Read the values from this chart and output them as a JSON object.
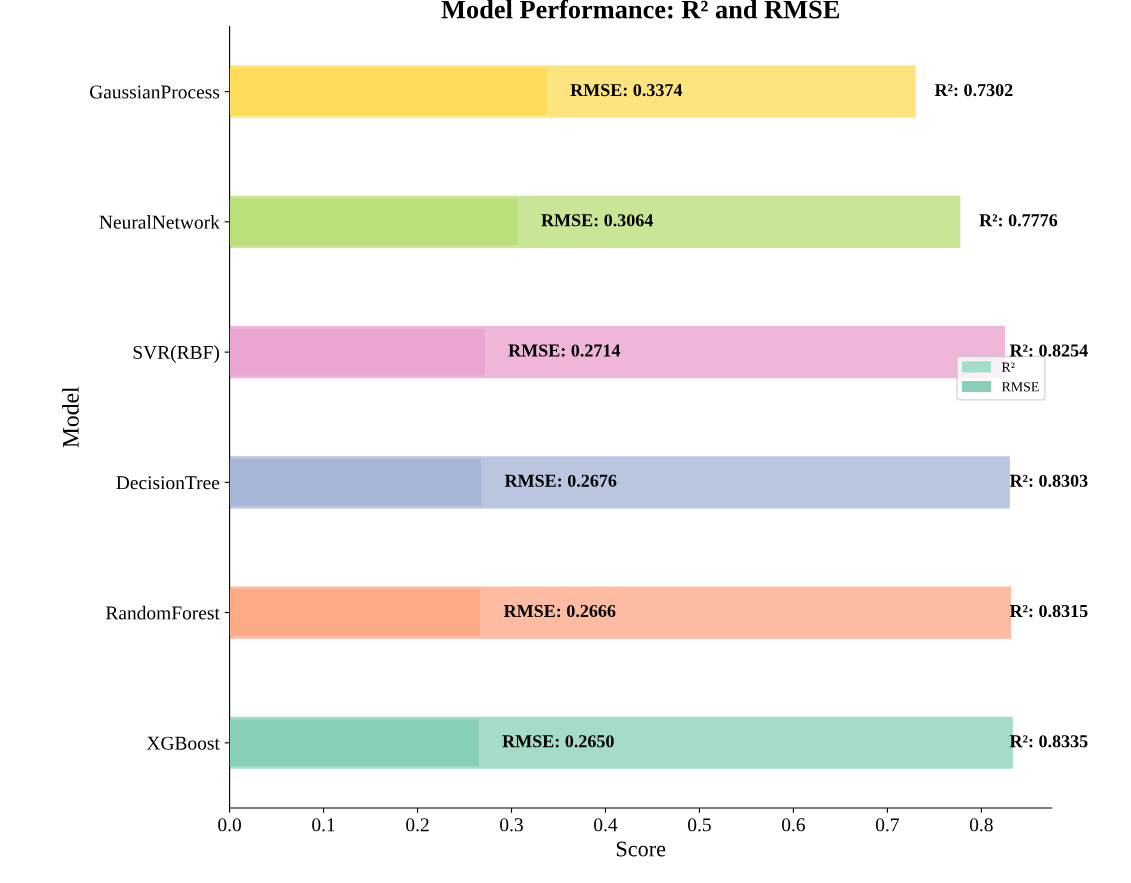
{
  "chart_data": {
    "type": "bar",
    "orientation": "horizontal",
    "title": "Model Performance: R² and RMSE",
    "xlabel": "Score",
    "ylabel": "Model",
    "categories": [
      "GaussianProcess",
      "NeuralNetwork",
      "SVR(RBF)",
      "DecisionTree",
      "RandomForest",
      "XGBoost"
    ],
    "series": [
      {
        "name": "R²",
        "colors": [
          "#fee47f",
          "#c8e696",
          "#efb6da",
          "#bac6e0",
          "#fdbba1",
          "#a5dcc9"
        ],
        "values": [
          0.7302,
          0.7776,
          0.8254,
          0.8303,
          0.8315,
          0.8335
        ],
        "value_labels": [
          "R²: 0.7302",
          "R²: 0.7776",
          "R²: 0.8254",
          "R²: 0.8303",
          "R²: 0.8315",
          "R²: 0.8335"
        ]
      },
      {
        "name": "RMSE",
        "colors": [
          "#ffdc5a",
          "#bade7a",
          "#eaa4d0",
          "#a6b5d6",
          "#fca986",
          "#88cfb8"
        ],
        "values": [
          0.3374,
          0.3064,
          0.2714,
          0.2676,
          0.2666,
          0.265
        ],
        "value_labels": [
          "RMSE: 0.3374",
          "RMSE: 0.3064",
          "RMSE: 0.2714",
          "RMSE: 0.2676",
          "RMSE: 0.2666",
          "RMSE: 0.2650"
        ]
      }
    ],
    "xlim": [
      0,
      0.875
    ],
    "xticks": [
      {
        "value": 0,
        "label": "0.0"
      },
      0.1,
      0.2,
      0.3,
      0.4,
      0.5,
      0.6,
      0.7,
      0.8
    ],
    "legend": "right",
    "grid": false
  }
}
